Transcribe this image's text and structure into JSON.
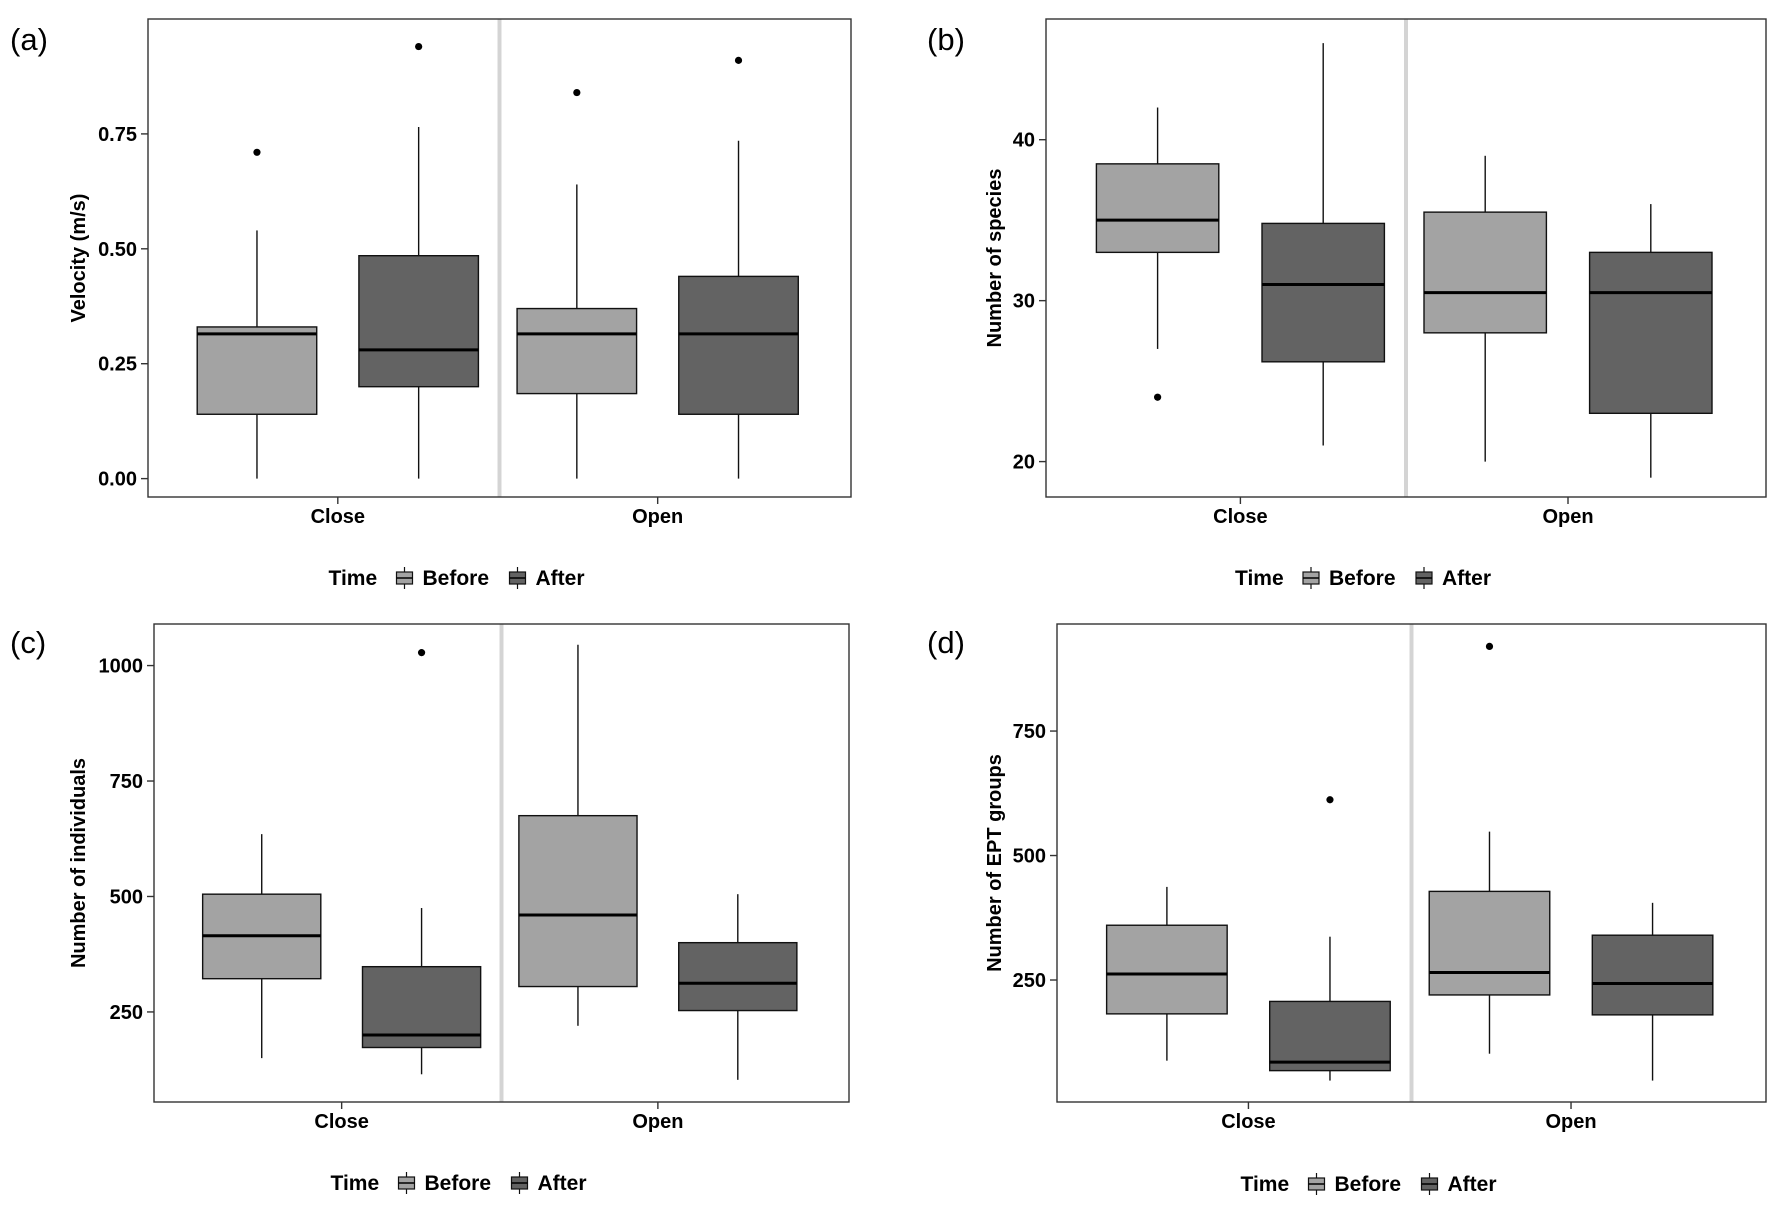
{
  "legend_title": "Time",
  "colors": {
    "before": "#a3a3a3",
    "after": "#636363",
    "separator": "#d4d4d4",
    "frame": "#333333"
  },
  "chart_data": [
    {
      "type": "boxplot",
      "panel_label": "(a)",
      "ylabel": "Velocity (m/s)",
      "categories": [
        "Close",
        "Open"
      ],
      "yticks": [
        0.0,
        0.25,
        0.5,
        0.75
      ],
      "ytick_labels": [
        "0.00",
        "0.25",
        "0.50",
        "0.75"
      ],
      "ylim": [
        -0.04,
        1.0
      ],
      "legend": {
        "title": "Time",
        "entries": [
          "Before",
          "After"
        ],
        "position": "bottom"
      },
      "series": [
        {
          "name": "Before",
          "boxes": [
            {
              "category": "Close",
              "lower_whisker": 0.0,
              "q1": 0.14,
              "median": 0.315,
              "q3": 0.33,
              "upper_whisker": 0.54,
              "outliers": [
                0.71
              ]
            },
            {
              "category": "Open",
              "lower_whisker": 0.0,
              "q1": 0.185,
              "median": 0.315,
              "q3": 0.37,
              "upper_whisker": 0.64,
              "outliers": [
                0.84
              ]
            }
          ]
        },
        {
          "name": "After",
          "boxes": [
            {
              "category": "Close",
              "lower_whisker": 0.0,
              "q1": 0.2,
              "median": 0.28,
              "q3": 0.485,
              "upper_whisker": 0.765,
              "outliers": [
                0.94
              ]
            },
            {
              "category": "Open",
              "lower_whisker": 0.0,
              "q1": 0.14,
              "median": 0.315,
              "q3": 0.44,
              "upper_whisker": 0.735,
              "outliers": [
                0.91
              ]
            }
          ]
        }
      ]
    },
    {
      "type": "boxplot",
      "panel_label": "(b)",
      "ylabel": "Number of species",
      "categories": [
        "Close",
        "Open"
      ],
      "yticks": [
        20,
        30,
        40
      ],
      "ytick_labels": [
        "20",
        "30",
        "40"
      ],
      "ylim": [
        17.8,
        47.5
      ],
      "legend": {
        "title": "Time",
        "entries": [
          "Before",
          "After"
        ],
        "position": "bottom"
      },
      "series": [
        {
          "name": "Before",
          "boxes": [
            {
              "category": "Close",
              "lower_whisker": 27,
              "q1": 33,
              "median": 35,
              "q3": 38.5,
              "upper_whisker": 42,
              "outliers": [
                24
              ]
            },
            {
              "category": "Open",
              "lower_whisker": 20,
              "q1": 28,
              "median": 30.5,
              "q3": 35.5,
              "upper_whisker": 39,
              "outliers": []
            }
          ]
        },
        {
          "name": "After",
          "boxes": [
            {
              "category": "Close",
              "lower_whisker": 21,
              "q1": 26.2,
              "median": 31,
              "q3": 34.8,
              "upper_whisker": 46,
              "outliers": []
            },
            {
              "category": "Open",
              "lower_whisker": 19,
              "q1": 23,
              "median": 30.5,
              "q3": 33,
              "upper_whisker": 36,
              "outliers": []
            }
          ]
        }
      ]
    },
    {
      "type": "boxplot",
      "panel_label": "(c)",
      "ylabel": "Number of individuals",
      "categories": [
        "Close",
        "Open"
      ],
      "yticks": [
        250,
        500,
        750,
        1000
      ],
      "ytick_labels": [
        "250",
        "500",
        "750",
        "1000"
      ],
      "ylim": [
        55,
        1090
      ],
      "legend": {
        "title": "Time",
        "entries": [
          "Before",
          "After"
        ],
        "position": "bottom"
      },
      "series": [
        {
          "name": "Before",
          "boxes": [
            {
              "category": "Close",
              "lower_whisker": 150,
              "q1": 322,
              "median": 415,
              "q3": 505,
              "upper_whisker": 635,
              "outliers": []
            },
            {
              "category": "Open",
              "lower_whisker": 220,
              "q1": 305,
              "median": 460,
              "q3": 675,
              "upper_whisker": 1045,
              "outliers": []
            }
          ]
        },
        {
          "name": "After",
          "boxes": [
            {
              "category": "Close",
              "lower_whisker": 115,
              "q1": 173,
              "median": 200,
              "q3": 348,
              "upper_whisker": 475,
              "outliers": [
                1028
              ]
            },
            {
              "category": "Open",
              "lower_whisker": 103,
              "q1": 253,
              "median": 312,
              "q3": 400,
              "upper_whisker": 505,
              "outliers": []
            }
          ]
        }
      ]
    },
    {
      "type": "boxplot",
      "panel_label": "(d)",
      "ylabel": "Number of EPT groups",
      "categories": [
        "Close",
        "Open"
      ],
      "yticks": [
        250,
        500,
        750
      ],
      "ytick_labels": [
        "250",
        "500",
        "750"
      ],
      "ylim": [
        5,
        965
      ],
      "legend": {
        "title": "Time",
        "entries": [
          "Before",
          "After"
        ],
        "position": "bottom"
      },
      "series": [
        {
          "name": "Before",
          "boxes": [
            {
              "category": "Close",
              "lower_whisker": 88,
              "q1": 182,
              "median": 262,
              "q3": 360,
              "upper_whisker": 437,
              "outliers": []
            },
            {
              "category": "Open",
              "lower_whisker": 102,
              "q1": 220,
              "median": 265,
              "q3": 428,
              "upper_whisker": 548,
              "outliers": [
                920
              ]
            }
          ]
        },
        {
          "name": "After",
          "boxes": [
            {
              "category": "Close",
              "lower_whisker": 48,
              "q1": 68,
              "median": 85,
              "q3": 207,
              "upper_whisker": 337,
              "outliers": [
                612
              ]
            },
            {
              "category": "Open",
              "lower_whisker": 48,
              "q1": 180,
              "median": 243,
              "q3": 340,
              "upper_whisker": 405,
              "outliers": []
            }
          ]
        }
      ]
    }
  ]
}
